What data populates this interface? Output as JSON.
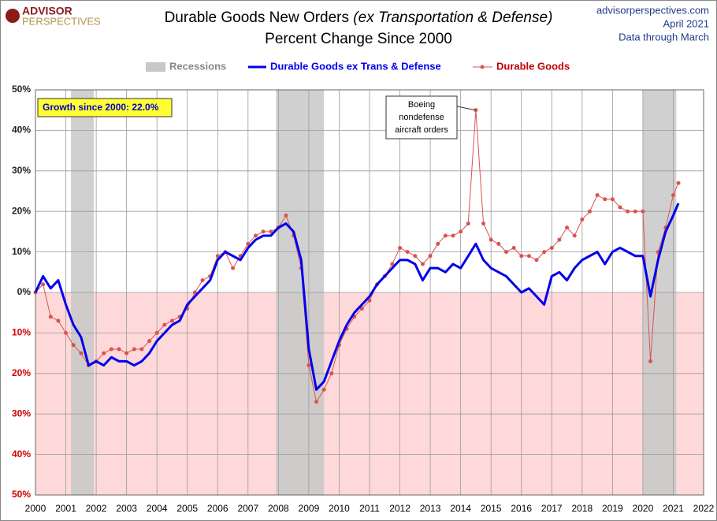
{
  "chart_data": {
    "type": "line",
    "logo": [
      "ADVISOR",
      "PERSPECTIVES"
    ],
    "title": "Durable Goods New Orders",
    "title_note": "(ex Transportation & Defense)",
    "subtitle": "Percent Change Since 2000",
    "source": [
      "advisorperspectives.com",
      "April 2021",
      "Data through March"
    ],
    "recession_label": "Recessions",
    "recession_color": "#c8c8c8",
    "recessions": [
      [
        2001.17,
        2001.92
      ],
      [
        2007.92,
        2009.5
      ],
      [
        2020.0,
        2021.1
      ]
    ],
    "annotations": {
      "growth": "Growth since 2000:  22.0%",
      "boeing": [
        "Boeing",
        "nondefense",
        "aircraft orders"
      ]
    },
    "x": [
      2000,
      2000.25,
      2000.5,
      2000.75,
      2001,
      2001.25,
      2001.5,
      2001.75,
      2002,
      2002.25,
      2002.5,
      2002.75,
      2003,
      2003.25,
      2003.5,
      2003.75,
      2004,
      2004.25,
      2004.5,
      2004.75,
      2005,
      2005.25,
      2005.5,
      2005.75,
      2006,
      2006.25,
      2006.5,
      2006.75,
      2007,
      2007.25,
      2007.5,
      2007.75,
      2008,
      2008.25,
      2008.5,
      2008.75,
      2009,
      2009.25,
      2009.5,
      2009.75,
      2010,
      2010.25,
      2010.5,
      2010.75,
      2011,
      2011.25,
      2011.5,
      2011.75,
      2012,
      2012.25,
      2012.5,
      2012.75,
      2013,
      2013.25,
      2013.5,
      2013.75,
      2014,
      2014.25,
      2014.5,
      2014.75,
      2015,
      2015.25,
      2015.5,
      2015.75,
      2016,
      2016.25,
      2016.5,
      2016.75,
      2017,
      2017.25,
      2017.5,
      2017.75,
      2018,
      2018.25,
      2018.5,
      2018.75,
      2019,
      2019.25,
      2019.5,
      2019.75,
      2020,
      2020.25,
      2020.5,
      2020.75,
      2021,
      2021.17
    ],
    "series": [
      {
        "name": "Durable Goods ex Trans & Defense",
        "color": "#0000ee",
        "values": [
          0,
          4,
          1,
          3,
          -3,
          -8,
          -11,
          -18,
          -17,
          -18,
          -16,
          -17,
          -17,
          -18,
          -17,
          -15,
          -12,
          -10,
          -8,
          -7,
          -3,
          -1,
          1,
          3,
          8,
          10,
          9,
          8,
          11,
          13,
          14,
          14,
          16,
          17,
          15,
          8,
          -14,
          -24,
          -22,
          -17,
          -12,
          -8,
          -5,
          -3,
          -1,
          2,
          4,
          6,
          8,
          8,
          7,
          3,
          6,
          6,
          5,
          7,
          6,
          9,
          12,
          8,
          6,
          5,
          4,
          2,
          0,
          1,
          -1,
          -3,
          4,
          5,
          3,
          6,
          8,
          9,
          10,
          7,
          10,
          11,
          10,
          9,
          9,
          -1,
          8,
          15,
          19,
          22
        ]
      },
      {
        "name": "Durable Goods",
        "color": "#d9534f",
        "values": [
          0,
          2,
          -6,
          -7,
          -10,
          -13,
          -15,
          -18,
          -17,
          -15,
          -14,
          -14,
          -15,
          -14,
          -14,
          -12,
          -10,
          -8,
          -7,
          -6,
          -4,
          0,
          3,
          4,
          9,
          10,
          6,
          9,
          12,
          14,
          15,
          15,
          16,
          19,
          14,
          6,
          -18,
          -27,
          -24,
          -20,
          -13,
          -9,
          -6,
          -4,
          -2,
          2,
          4,
          7,
          11,
          10,
          9,
          7,
          9,
          12,
          14,
          14,
          15,
          17,
          45,
          17,
          13,
          12,
          10,
          11,
          9,
          9,
          8,
          10,
          11,
          13,
          16,
          14,
          18,
          20,
          24,
          23,
          23,
          21,
          20,
          20,
          20,
          -17,
          10,
          16,
          24,
          27
        ]
      }
    ],
    "xlim": [
      2000,
      2022
    ],
    "xticks": [
      2000,
      2001,
      2002,
      2003,
      2004,
      2005,
      2006,
      2007,
      2008,
      2009,
      2010,
      2011,
      2012,
      2013,
      2014,
      2015,
      2016,
      2017,
      2018,
      2019,
      2020,
      2021,
      2022
    ],
    "ylim": [
      -50,
      50
    ],
    "yticks": [
      {
        "value": -50,
        "label": "50%"
      },
      {
        "value": -40,
        "label": "40%"
      },
      {
        "value": -30,
        "label": "30%"
      },
      {
        "value": -20,
        "label": "20%"
      },
      {
        "value": -10,
        "label": "10%"
      },
      {
        "value": 0,
        "label": "0%"
      },
      {
        "value": 10,
        "label": "10%"
      },
      {
        "value": 20,
        "label": "20%"
      },
      {
        "value": 30,
        "label": "30%"
      },
      {
        "value": 40,
        "label": "40%"
      },
      {
        "value": 50,
        "label": "50%"
      }
    ],
    "negative_fill": "#ffd9d9",
    "grid": true
  }
}
